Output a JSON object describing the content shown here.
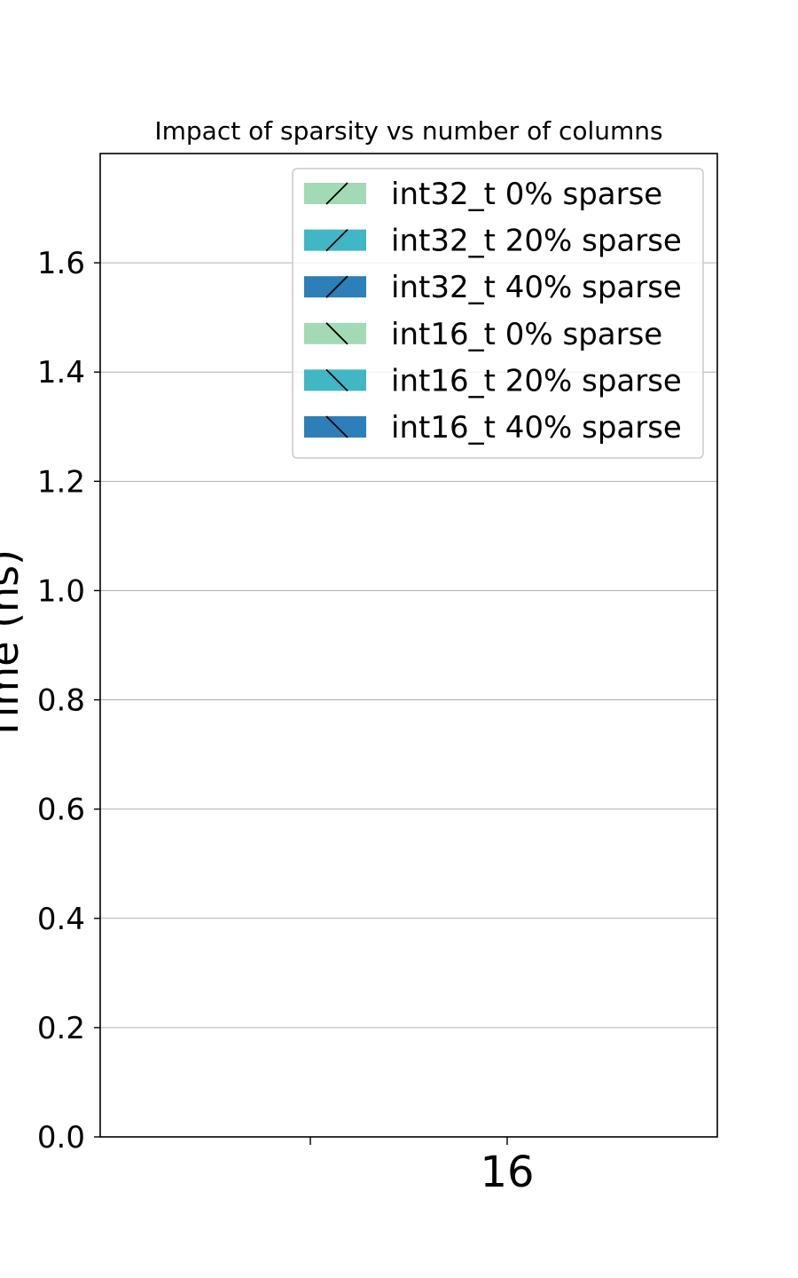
{
  "chart_data": {
    "type": "bar",
    "title": "Impact of sparsity vs number of columns",
    "xlabel": "",
    "ylabel": "Time (ns)",
    "categories": [
      "16"
    ],
    "ylim": [
      0,
      1.8
    ],
    "yticks": [
      "0.0",
      "0.2",
      "0.4",
      "0.6",
      "0.8",
      "1.0",
      "1.2",
      "1.4",
      "1.6"
    ],
    "grid": "y",
    "legend_position": "top-right",
    "series": [
      {
        "name": "int32_t 0% sparse",
        "color": "#a1dab4",
        "hatch": "/",
        "values": [
          null
        ]
      },
      {
        "name": "int32_t 20% sparse",
        "color": "#41b6c4",
        "hatch": "/",
        "values": [
          null
        ]
      },
      {
        "name": "int32_t 40% sparse",
        "color": "#2c7fb8",
        "hatch": "/",
        "values": [
          null
        ]
      },
      {
        "name": "int16_t 0% sparse",
        "color": "#a1dab4",
        "hatch": "\\",
        "values": [
          null
        ]
      },
      {
        "name": "int16_t 20% sparse",
        "color": "#41b6c4",
        "hatch": "\\",
        "values": [
          null
        ]
      },
      {
        "name": "int16_t 40% sparse",
        "color": "#2c7fb8",
        "hatch": "\\",
        "values": [
          null
        ]
      }
    ]
  }
}
